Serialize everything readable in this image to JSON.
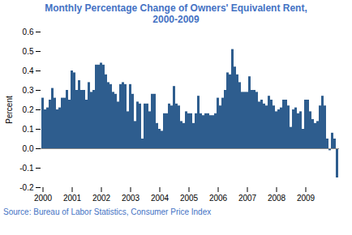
{
  "chart_data": {
    "type": "bar",
    "title": "Monthly Percentage Change of Owners' Equivalent Rent,",
    "subtitle": "2000-2009",
    "ylabel": "Percent",
    "caption": "Source: Bureau of Labor Statistics, Consumer Price Index",
    "color": "#2E5D8E",
    "categories": [
      "2000",
      null,
      null,
      null,
      null,
      null,
      null,
      null,
      null,
      null,
      null,
      null,
      "2001",
      null,
      null,
      null,
      null,
      null,
      null,
      null,
      null,
      null,
      null,
      null,
      "2002",
      null,
      null,
      null,
      null,
      null,
      null,
      null,
      null,
      null,
      null,
      null,
      "2003",
      null,
      null,
      null,
      null,
      null,
      null,
      null,
      null,
      null,
      null,
      null,
      "2004",
      null,
      null,
      null,
      null,
      null,
      null,
      null,
      null,
      null,
      null,
      null,
      "2005",
      null,
      null,
      null,
      null,
      null,
      null,
      null,
      null,
      null,
      null,
      null,
      "2006",
      null,
      null,
      null,
      null,
      null,
      null,
      null,
      null,
      null,
      null,
      null,
      "2007",
      null,
      null,
      null,
      null,
      null,
      null,
      null,
      null,
      null,
      null,
      null,
      "2008",
      null,
      null,
      null,
      null,
      null,
      null,
      null,
      null,
      null,
      null,
      null,
      "2009",
      null,
      null,
      null,
      null,
      null,
      null,
      null,
      null,
      null,
      null,
      null,
      null,
      null
    ],
    "values": [
      0.26,
      0.2,
      0.21,
      0.25,
      0.31,
      0.26,
      0.2,
      0.21,
      0.26,
      0.26,
      0.3,
      0.25,
      0.4,
      0.39,
      0.3,
      0.35,
      0.3,
      0.3,
      0.25,
      0.34,
      0.29,
      0.3,
      0.43,
      0.43,
      0.44,
      0.43,
      0.38,
      0.34,
      0.33,
      0.29,
      0.28,
      0.24,
      0.33,
      0.34,
      0.33,
      0.19,
      0.33,
      0.28,
      0.14,
      0.24,
      0.23,
      0.05,
      0.23,
      0.23,
      0.19,
      0.28,
      0.28,
      0.13,
      0.1,
      0.09,
      0.18,
      0.18,
      0.23,
      0.22,
      0.32,
      0.23,
      0.22,
      0.14,
      0.13,
      0.19,
      0.18,
      0.18,
      0.13,
      0.18,
      0.27,
      0.18,
      0.17,
      0.18,
      0.18,
      0.17,
      0.17,
      0.18,
      0.26,
      0.22,
      0.26,
      0.3,
      0.39,
      0.38,
      0.51,
      0.42,
      0.38,
      0.34,
      0.29,
      0.29,
      0.29,
      0.37,
      0.3,
      0.3,
      0.29,
      0.24,
      0.25,
      0.23,
      0.22,
      0.27,
      0.25,
      0.22,
      0.19,
      0.2,
      0.21,
      0.25,
      0.25,
      0.22,
      0.11,
      0.2,
      0.21,
      0.18,
      0.19,
      0.1,
      0.25,
      0.25,
      0.19,
      0.15,
      0.13,
      0.14,
      0.22,
      0.27,
      0.22,
      0.05,
      -0.01,
      0.08,
      0.05,
      -0.15
    ],
    "ylim": [
      -0.2,
      0.6
    ],
    "yticks": [
      -0.2,
      -0.1,
      {
        "value": 0.0,
        "label": "0.0"
      },
      0.1,
      0.2,
      0.3,
      0.4,
      0.5,
      0.6
    ],
    "grid": false
  }
}
